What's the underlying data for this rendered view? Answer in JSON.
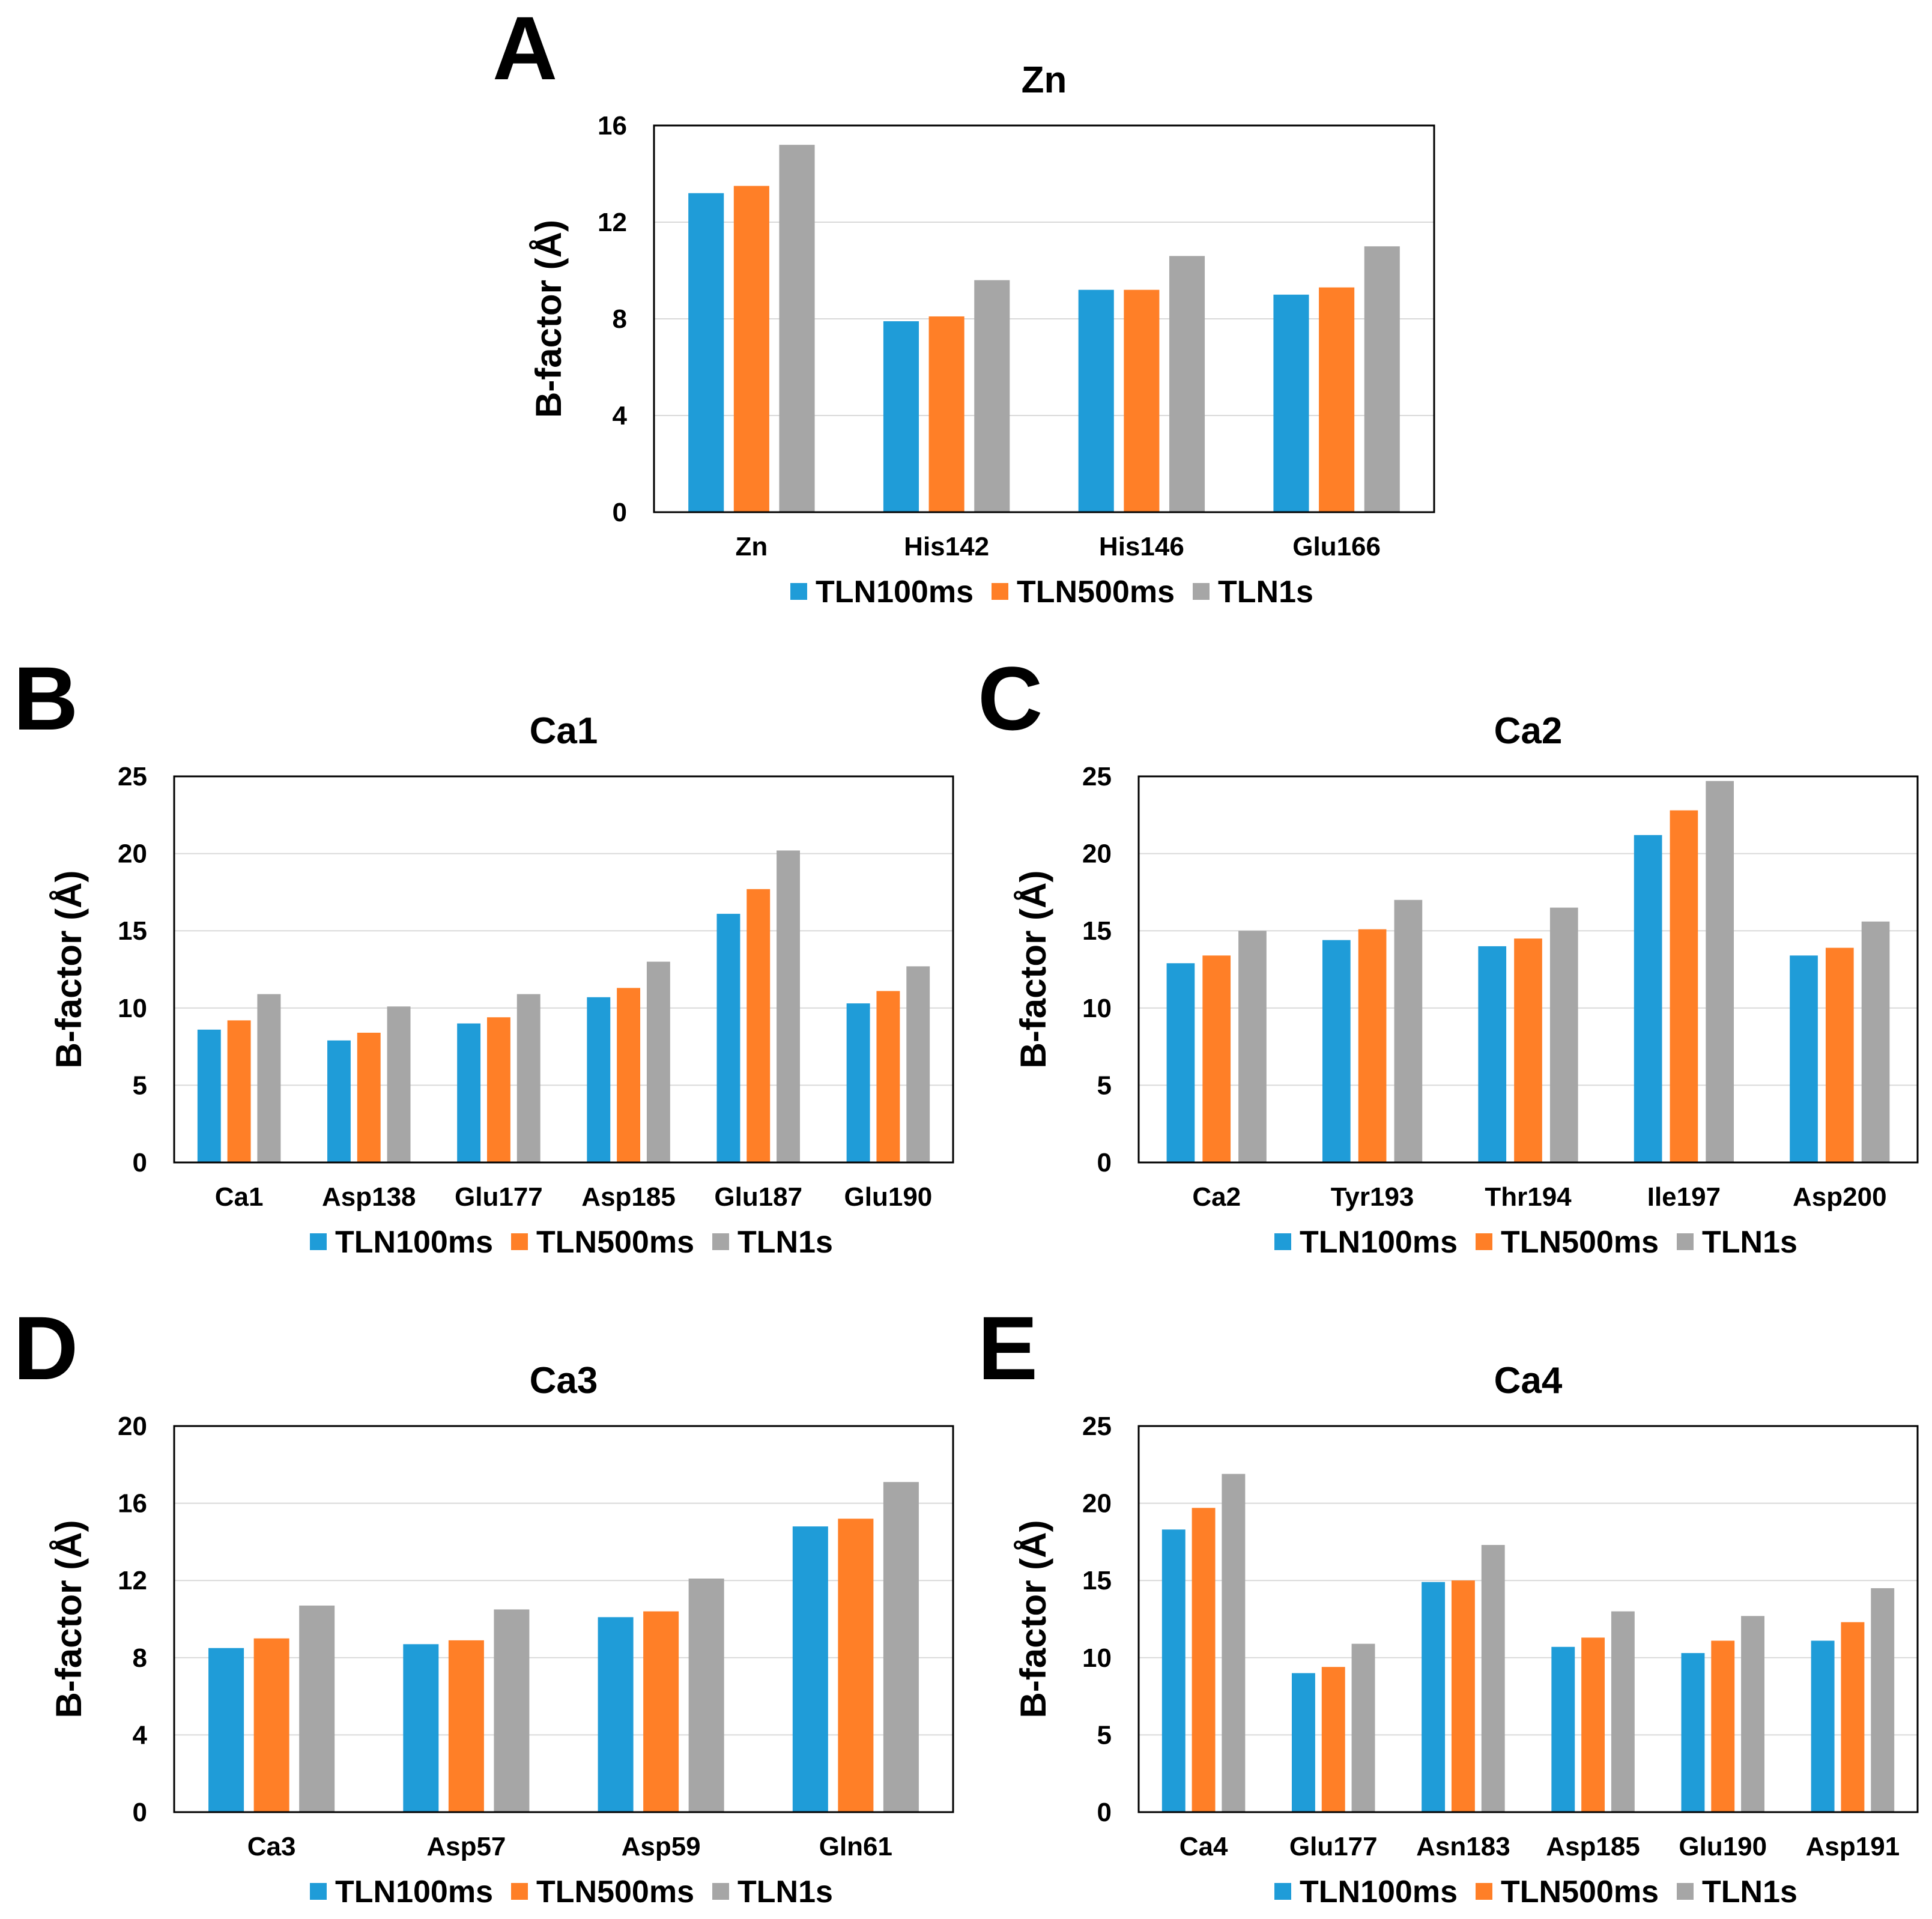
{
  "colors": {
    "TLN100ms": "#1F9CD8",
    "TLN500ms": "#FF7F27",
    "TLN1s": "#A6A6A6"
  },
  "chart_data": [
    {
      "panel": "A",
      "type": "bar",
      "title": "Zn",
      "ylabel": "B-factor (Å)",
      "xlabel": "",
      "ylim": [
        0,
        16
      ],
      "yticks": [
        0,
        4,
        8,
        12,
        16
      ],
      "grid": true,
      "legend": "bottom",
      "categories": [
        "Zn",
        "His142",
        "His146",
        "Glu166"
      ],
      "series": [
        {
          "name": "TLN100ms",
          "values": [
            13.2,
            7.9,
            9.2,
            9.0
          ]
        },
        {
          "name": "TLN500ms",
          "values": [
            13.5,
            8.1,
            9.2,
            9.3
          ]
        },
        {
          "name": "TLN1s",
          "values": [
            15.2,
            9.6,
            10.6,
            11.0
          ]
        }
      ]
    },
    {
      "panel": "B",
      "type": "bar",
      "title": "Ca1",
      "ylabel": "B-factor (Å)",
      "xlabel": "",
      "ylim": [
        0,
        25
      ],
      "yticks": [
        0,
        5,
        10,
        15,
        20,
        25
      ],
      "grid": true,
      "legend": "bottom",
      "categories": [
        "Ca1",
        "Asp138",
        "Glu177",
        "Asp185",
        "Glu187",
        "Glu190"
      ],
      "series": [
        {
          "name": "TLN100ms",
          "values": [
            8.6,
            7.9,
            9.0,
            10.7,
            16.1,
            10.3
          ]
        },
        {
          "name": "TLN500ms",
          "values": [
            9.2,
            8.4,
            9.4,
            11.3,
            17.7,
            11.1
          ]
        },
        {
          "name": "TLN1s",
          "values": [
            10.9,
            10.1,
            10.9,
            13.0,
            20.2,
            12.7
          ]
        }
      ]
    },
    {
      "panel": "C",
      "type": "bar",
      "title": "Ca2",
      "ylabel": "B-factor (Å)",
      "xlabel": "",
      "ylim": [
        0,
        25
      ],
      "yticks": [
        0,
        5,
        10,
        15,
        20,
        25
      ],
      "grid": true,
      "legend": "bottom",
      "categories": [
        "Ca2",
        "Tyr193",
        "Thr194",
        "Ile197",
        "Asp200"
      ],
      "series": [
        {
          "name": "TLN100ms",
          "values": [
            12.9,
            14.4,
            14.0,
            21.2,
            13.4
          ]
        },
        {
          "name": "TLN500ms",
          "values": [
            13.4,
            15.1,
            14.5,
            22.8,
            13.9
          ]
        },
        {
          "name": "TLN1s",
          "values": [
            15.0,
            17.0,
            16.5,
            24.7,
            15.6
          ]
        }
      ]
    },
    {
      "panel": "D",
      "type": "bar",
      "title": "Ca3",
      "ylabel": "B-factor (Å)",
      "xlabel": "",
      "ylim": [
        0,
        20
      ],
      "yticks": [
        0,
        4,
        8,
        12,
        16,
        20
      ],
      "grid": true,
      "legend": "bottom",
      "categories": [
        "Ca3",
        "Asp57",
        "Asp59",
        "Gln61"
      ],
      "series": [
        {
          "name": "TLN100ms",
          "values": [
            8.5,
            8.7,
            10.1,
            14.8
          ]
        },
        {
          "name": "TLN500ms",
          "values": [
            9.0,
            8.9,
            10.4,
            15.2
          ]
        },
        {
          "name": "TLN1s",
          "values": [
            10.7,
            10.5,
            12.1,
            17.1
          ]
        }
      ]
    },
    {
      "panel": "E",
      "type": "bar",
      "title": "Ca4",
      "ylabel": "B-factor (Å)",
      "xlabel": "",
      "ylim": [
        0,
        25
      ],
      "yticks": [
        0,
        5,
        10,
        15,
        20,
        25
      ],
      "grid": true,
      "legend": "bottom",
      "categories": [
        "Ca4",
        "Glu177",
        "Asn183",
        "Asp185",
        "Glu190",
        "Asp191"
      ],
      "series": [
        {
          "name": "TLN100ms",
          "values": [
            18.3,
            9.0,
            14.9,
            10.7,
            10.3,
            11.1
          ]
        },
        {
          "name": "TLN500ms",
          "values": [
            19.7,
            9.4,
            15.0,
            11.3,
            11.1,
            12.3
          ]
        },
        {
          "name": "TLN1s",
          "values": [
            21.9,
            10.9,
            17.3,
            13.0,
            12.7,
            14.5
          ]
        }
      ]
    }
  ]
}
